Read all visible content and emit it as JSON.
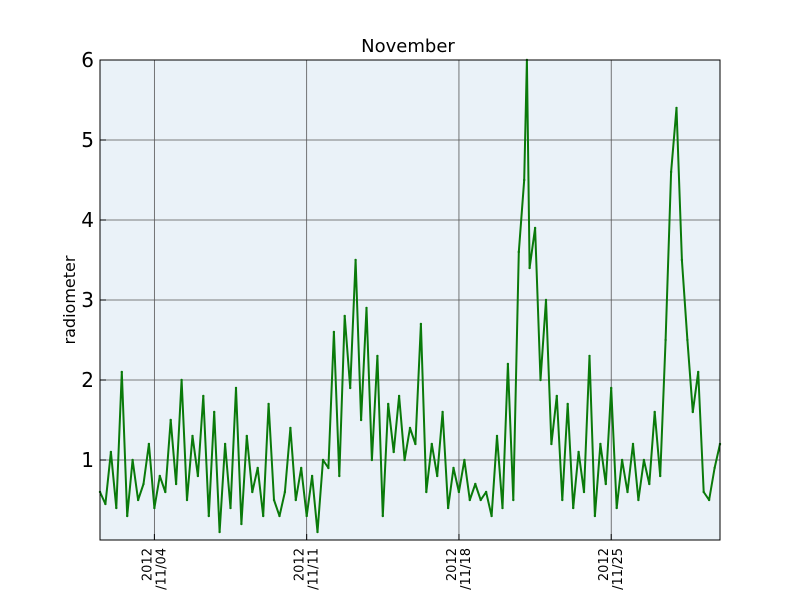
{
  "chart_data": {
    "type": "line",
    "title": "November",
    "xlabel": "",
    "ylabel": "radiometer",
    "xlim": [
      "2012-11-01T12:00",
      "2012-11-30T00:00"
    ],
    "ylim": [
      0,
      6
    ],
    "y_ticks": [
      1,
      2,
      3,
      4,
      5,
      6
    ],
    "x_ticks": [
      {
        "date": "2012-11-04",
        "line1": "2012",
        "line2": "/11/04"
      },
      {
        "date": "2012-11-11",
        "line1": "2012",
        "line2": "/11/11"
      },
      {
        "date": "2012-11-18",
        "line1": "2012",
        "line2": "/11/18"
      },
      {
        "date": "2012-11-25",
        "line1": "2012",
        "line2": "/11/25"
      }
    ],
    "grid": true,
    "background_color": "#eaf2f8",
    "series": [
      {
        "color": "#0a7a0a",
        "points": [
          [
            "2012-11-01T12:00",
            0.6
          ],
          [
            "2012-11-01T18:00",
            0.45
          ],
          [
            "2012-11-02T00:00",
            1.1
          ],
          [
            "2012-11-02T06:00",
            0.4
          ],
          [
            "2012-11-02T12:00",
            2.1
          ],
          [
            "2012-11-02T18:00",
            0.3
          ],
          [
            "2012-11-03T00:00",
            1.0
          ],
          [
            "2012-11-03T06:00",
            0.5
          ],
          [
            "2012-11-03T12:00",
            0.7
          ],
          [
            "2012-11-03T18:00",
            1.2
          ],
          [
            "2012-11-04T00:00",
            0.4
          ],
          [
            "2012-11-04T06:00",
            0.8
          ],
          [
            "2012-11-04T12:00",
            0.6
          ],
          [
            "2012-11-04T18:00",
            1.5
          ],
          [
            "2012-11-05T00:00",
            0.7
          ],
          [
            "2012-11-05T06:00",
            2.0
          ],
          [
            "2012-11-05T12:00",
            0.5
          ],
          [
            "2012-11-05T18:00",
            1.3
          ],
          [
            "2012-11-06T00:00",
            0.8
          ],
          [
            "2012-11-06T06:00",
            1.8
          ],
          [
            "2012-11-06T12:00",
            0.3
          ],
          [
            "2012-11-06T18:00",
            1.6
          ],
          [
            "2012-11-07T00:00",
            0.1
          ],
          [
            "2012-11-07T06:00",
            1.2
          ],
          [
            "2012-11-07T12:00",
            0.4
          ],
          [
            "2012-11-07T18:00",
            1.9
          ],
          [
            "2012-11-08T00:00",
            0.2
          ],
          [
            "2012-11-08T06:00",
            1.3
          ],
          [
            "2012-11-08T12:00",
            0.6
          ],
          [
            "2012-11-08T18:00",
            0.9
          ],
          [
            "2012-11-09T00:00",
            0.3
          ],
          [
            "2012-11-09T06:00",
            1.7
          ],
          [
            "2012-11-09T12:00",
            0.5
          ],
          [
            "2012-11-09T18:00",
            0.3
          ],
          [
            "2012-11-10T00:00",
            0.6
          ],
          [
            "2012-11-10T06:00",
            1.4
          ],
          [
            "2012-11-10T12:00",
            0.5
          ],
          [
            "2012-11-10T18:00",
            0.9
          ],
          [
            "2012-11-11T00:00",
            0.3
          ],
          [
            "2012-11-11T06:00",
            0.8
          ],
          [
            "2012-11-11T12:00",
            0.1
          ],
          [
            "2012-11-11T18:00",
            1.0
          ],
          [
            "2012-11-12T00:00",
            0.9
          ],
          [
            "2012-11-12T06:00",
            2.6
          ],
          [
            "2012-11-12T12:00",
            0.8
          ],
          [
            "2012-11-12T18:00",
            2.8
          ],
          [
            "2012-11-13T00:00",
            1.9
          ],
          [
            "2012-11-13T06:00",
            3.5
          ],
          [
            "2012-11-13T12:00",
            1.5
          ],
          [
            "2012-11-13T18:00",
            2.9
          ],
          [
            "2012-11-14T00:00",
            1.0
          ],
          [
            "2012-11-14T06:00",
            2.3
          ],
          [
            "2012-11-14T12:00",
            0.3
          ],
          [
            "2012-11-14T18:00",
            1.7
          ],
          [
            "2012-11-15T00:00",
            1.1
          ],
          [
            "2012-11-15T06:00",
            1.8
          ],
          [
            "2012-11-15T12:00",
            1.0
          ],
          [
            "2012-11-15T18:00",
            1.4
          ],
          [
            "2012-11-16T00:00",
            1.2
          ],
          [
            "2012-11-16T06:00",
            2.7
          ],
          [
            "2012-11-16T12:00",
            0.6
          ],
          [
            "2012-11-16T18:00",
            1.2
          ],
          [
            "2012-11-17T00:00",
            0.8
          ],
          [
            "2012-11-17T06:00",
            1.6
          ],
          [
            "2012-11-17T12:00",
            0.4
          ],
          [
            "2012-11-17T18:00",
            0.9
          ],
          [
            "2012-11-18T00:00",
            0.6
          ],
          [
            "2012-11-18T06:00",
            1.0
          ],
          [
            "2012-11-18T12:00",
            0.5
          ],
          [
            "2012-11-18T18:00",
            0.7
          ],
          [
            "2012-11-19T00:00",
            0.5
          ],
          [
            "2012-11-19T06:00",
            0.6
          ],
          [
            "2012-11-19T12:00",
            0.3
          ],
          [
            "2012-11-19T18:00",
            1.3
          ],
          [
            "2012-11-20T00:00",
            0.4
          ],
          [
            "2012-11-20T06:00",
            2.2
          ],
          [
            "2012-11-20T12:00",
            0.5
          ],
          [
            "2012-11-20T18:00",
            3.6
          ],
          [
            "2012-11-21T00:00",
            4.5
          ],
          [
            "2012-11-21T03:00",
            6.0
          ],
          [
            "2012-11-21T06:00",
            3.4
          ],
          [
            "2012-11-21T12:00",
            3.9
          ],
          [
            "2012-11-21T18:00",
            2.0
          ],
          [
            "2012-11-22T00:00",
            3.0
          ],
          [
            "2012-11-22T06:00",
            1.2
          ],
          [
            "2012-11-22T12:00",
            1.8
          ],
          [
            "2012-11-22T18:00",
            0.5
          ],
          [
            "2012-11-23T00:00",
            1.7
          ],
          [
            "2012-11-23T06:00",
            0.4
          ],
          [
            "2012-11-23T12:00",
            1.1
          ],
          [
            "2012-11-23T18:00",
            0.6
          ],
          [
            "2012-11-24T00:00",
            2.3
          ],
          [
            "2012-11-24T06:00",
            0.3
          ],
          [
            "2012-11-24T12:00",
            1.2
          ],
          [
            "2012-11-24T18:00",
            0.7
          ],
          [
            "2012-11-25T00:00",
            1.9
          ],
          [
            "2012-11-25T06:00",
            0.4
          ],
          [
            "2012-11-25T12:00",
            1.0
          ],
          [
            "2012-11-25T18:00",
            0.6
          ],
          [
            "2012-11-26T00:00",
            1.2
          ],
          [
            "2012-11-26T06:00",
            0.5
          ],
          [
            "2012-11-26T12:00",
            1.0
          ],
          [
            "2012-11-26T18:00",
            0.7
          ],
          [
            "2012-11-27T00:00",
            1.6
          ],
          [
            "2012-11-27T06:00",
            0.8
          ],
          [
            "2012-11-27T12:00",
            2.5
          ],
          [
            "2012-11-27T18:00",
            4.6
          ],
          [
            "2012-11-28T00:00",
            5.4
          ],
          [
            "2012-11-28T06:00",
            3.5
          ],
          [
            "2012-11-28T12:00",
            2.5
          ],
          [
            "2012-11-28T18:00",
            1.6
          ],
          [
            "2012-11-29T00:00",
            2.1
          ],
          [
            "2012-11-29T06:00",
            0.6
          ],
          [
            "2012-11-29T12:00",
            0.5
          ],
          [
            "2012-11-29T18:00",
            0.9
          ],
          [
            "2012-11-30T00:00",
            1.2
          ]
        ]
      }
    ]
  }
}
